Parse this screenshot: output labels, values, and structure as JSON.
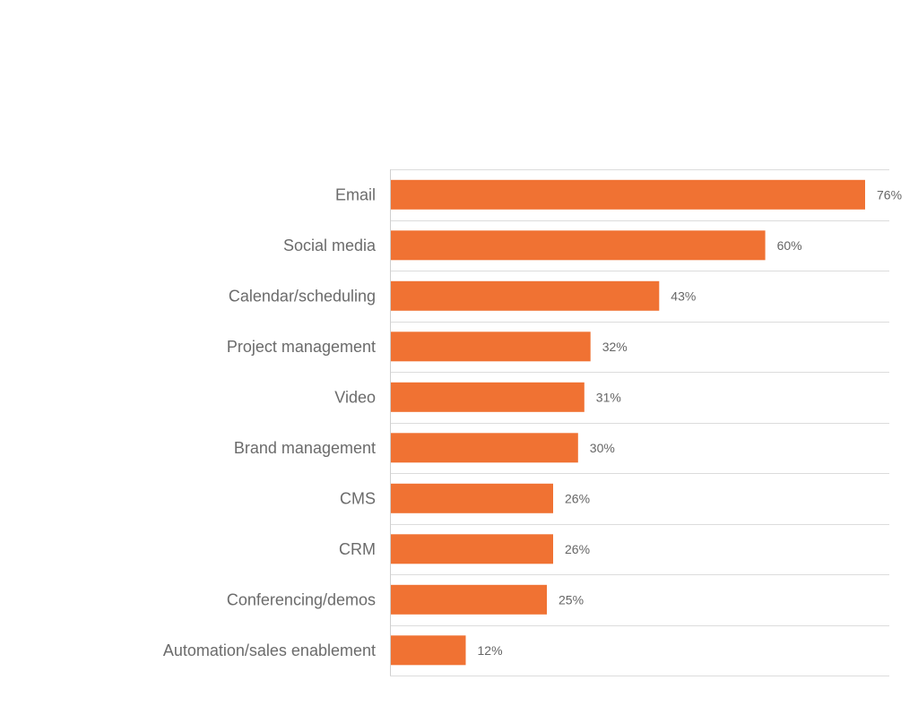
{
  "chart_data": {
    "type": "bar",
    "orientation": "horizontal",
    "categories": [
      "Email",
      "Social media",
      "Calendar/scheduling",
      "Project management",
      "Video",
      "Brand management",
      "CMS",
      "CRM",
      "Conferencing/demos",
      "Automation/sales enablement"
    ],
    "values": [
      76,
      60,
      43,
      32,
      31,
      30,
      26,
      26,
      25,
      12
    ],
    "value_labels": [
      "76%",
      "60%",
      "43%",
      "32%",
      "31%",
      "30%",
      "26%",
      "26%",
      "25%",
      "12%"
    ],
    "unit": "%",
    "xlim": [
      0,
      80
    ],
    "bar_color": "#f07233",
    "grid": true,
    "legend": "none",
    "title": "",
    "xlabel": "",
    "ylabel": ""
  }
}
